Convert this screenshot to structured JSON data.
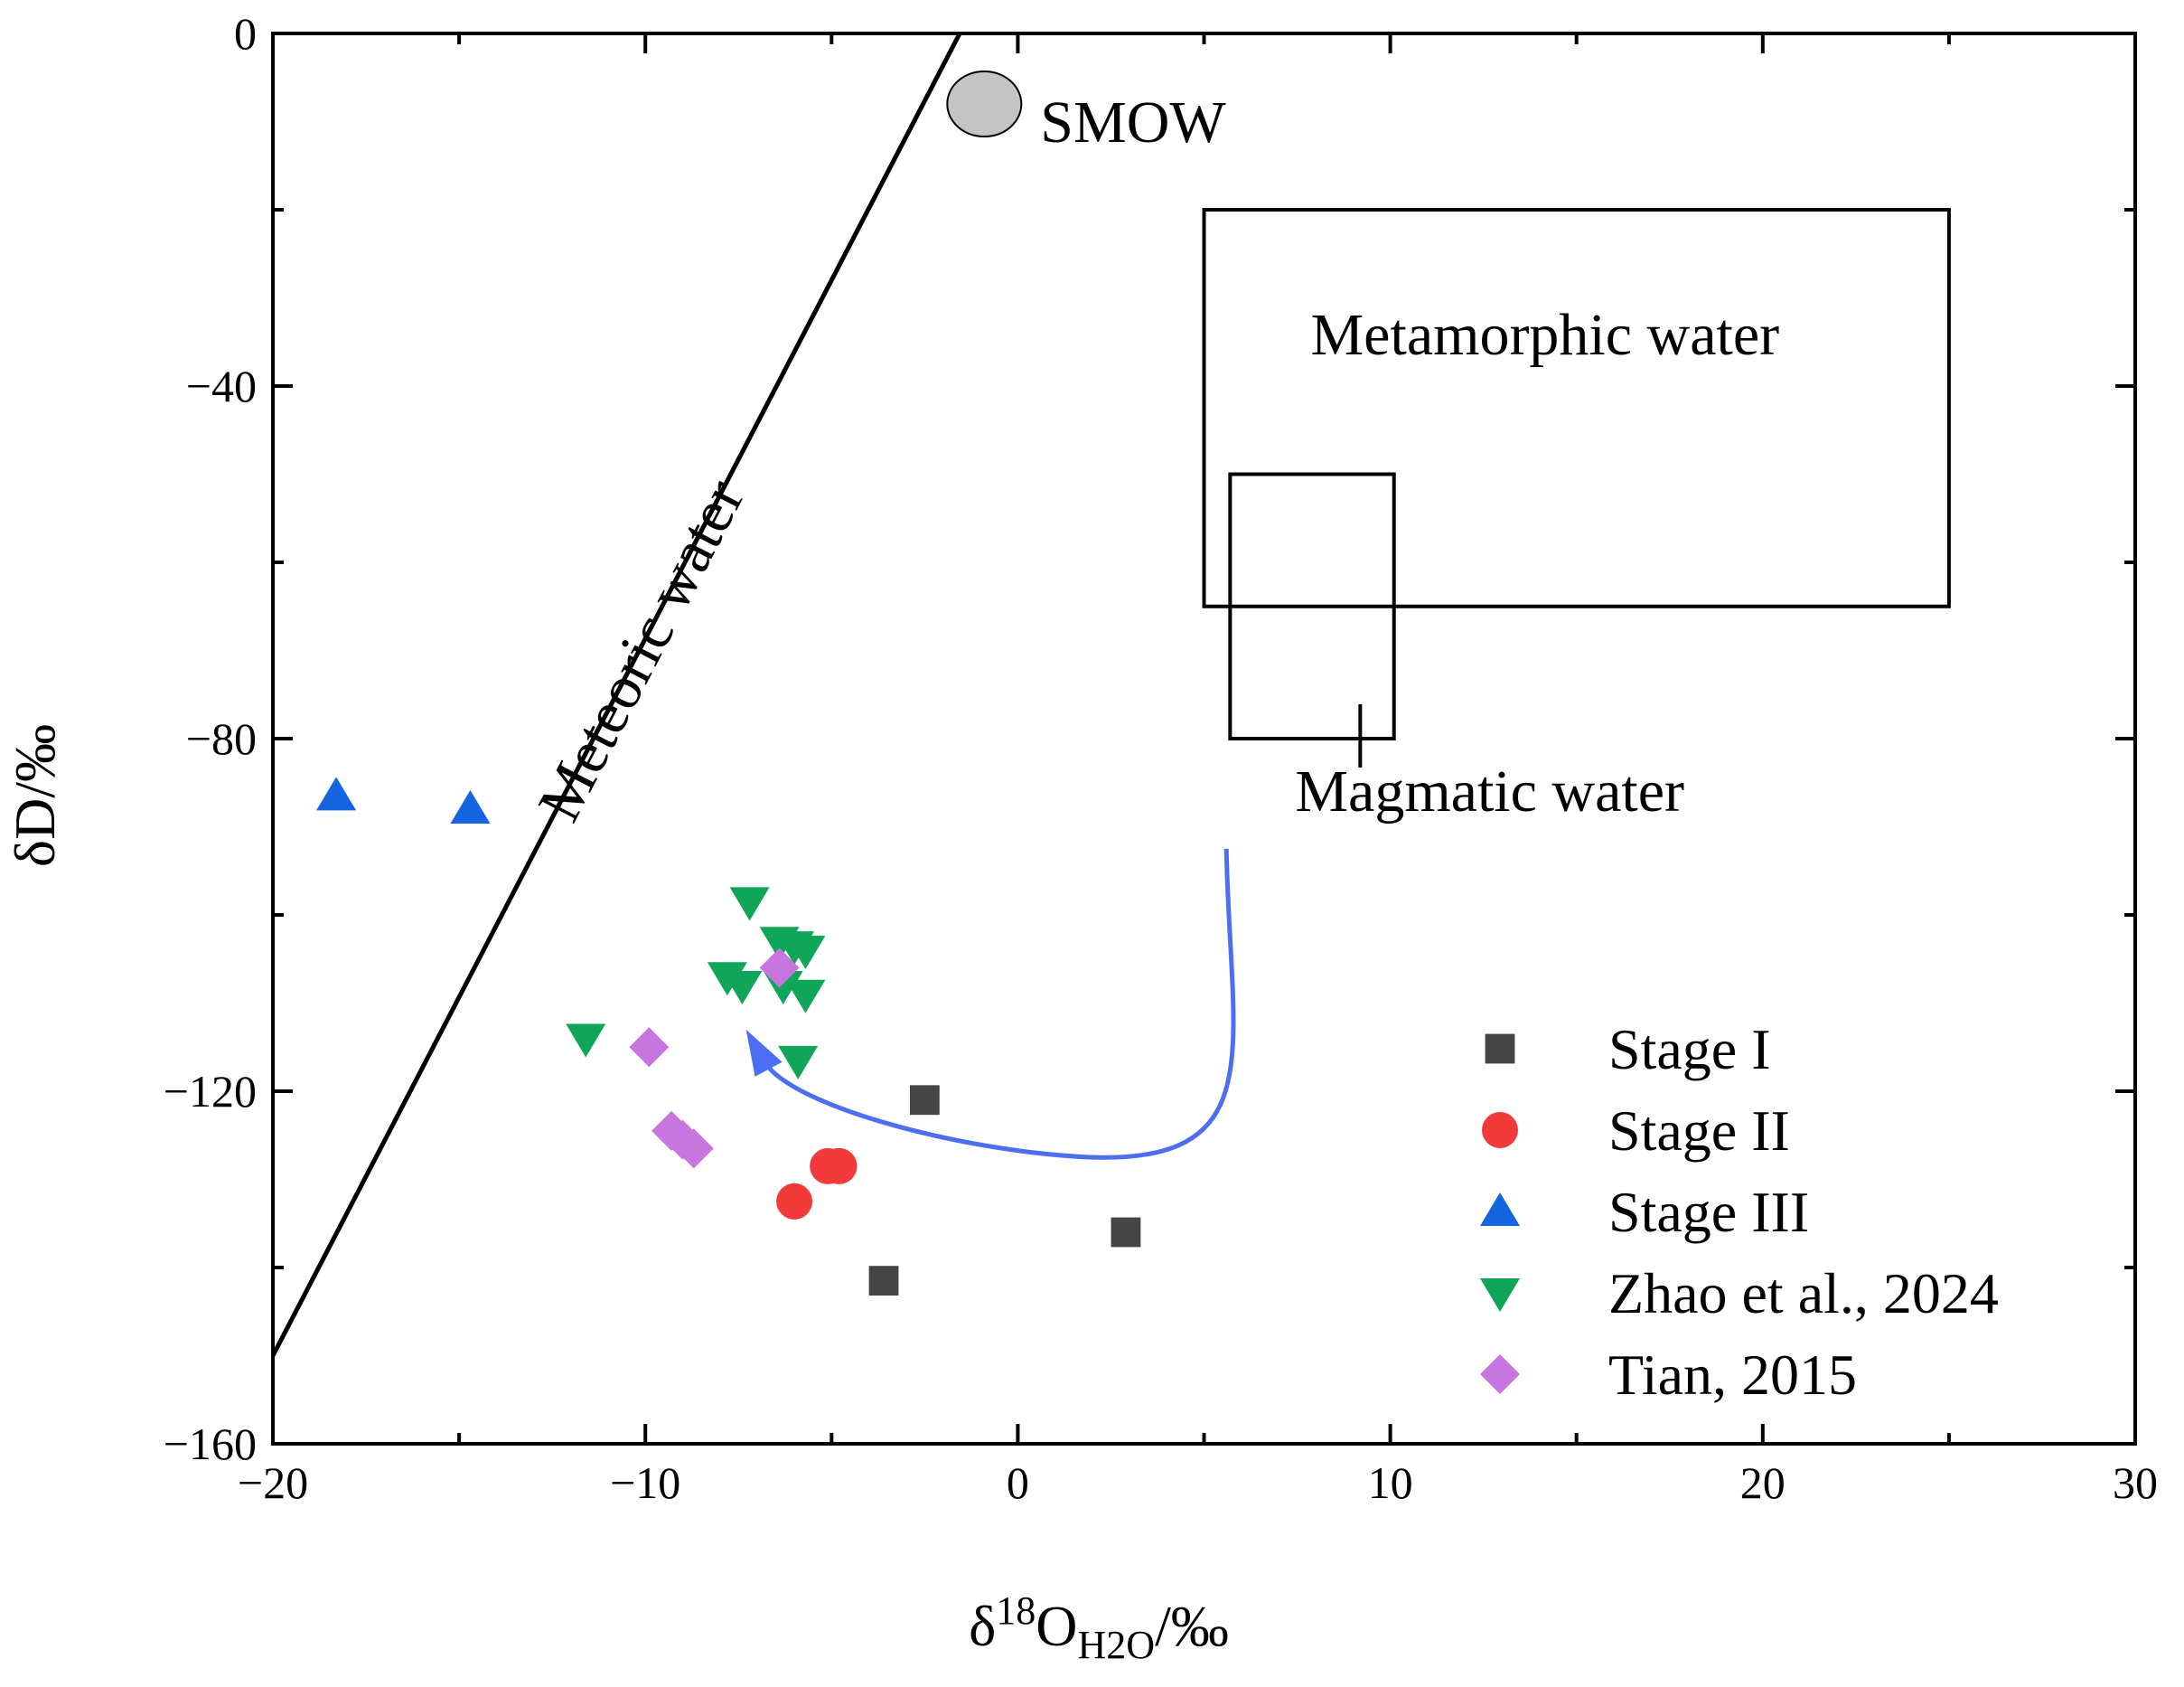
{
  "chart_data": {
    "type": "scatter",
    "title": "",
    "xlabel_parts": {
      "delta": "δ",
      "sup": "18",
      "main": "O",
      "sub": "H2O",
      "unit": "/‰"
    },
    "ylabel": "δD/‰",
    "xlim": [
      -20,
      30
    ],
    "ylim": [
      -160,
      0
    ],
    "x_ticks": [
      -20,
      -10,
      0,
      10,
      20,
      30
    ],
    "x_tick_labels": [
      "−20",
      "−10",
      "0",
      "10",
      "20",
      "30"
    ],
    "y_ticks": [
      0,
      -40,
      -80,
      -120,
      -160
    ],
    "y_tick_labels": [
      "0",
      "−40",
      "−80",
      "−120",
      "−160"
    ],
    "legend_position": "bottom-right",
    "series": [
      {
        "name": "Stage I",
        "marker": "square",
        "color": "#454545",
        "points": [
          [
            -2.5,
            -121
          ],
          [
            2.9,
            -136
          ],
          [
            -3.6,
            -141.5
          ]
        ]
      },
      {
        "name": "Stage II",
        "marker": "circle",
        "color": "#f23a3a",
        "points": [
          [
            -5.1,
            -128.5
          ],
          [
            -4.8,
            -128.5
          ],
          [
            -6.0,
            -132.5
          ]
        ]
      },
      {
        "name": "Stage III",
        "marker": "triangle-up",
        "color": "#1565e0",
        "points": [
          [
            -18.3,
            -86.5
          ],
          [
            -14.7,
            -88
          ]
        ]
      },
      {
        "name": "Zhao et al., 2024",
        "marker": "triangle-down",
        "color": "#0fa65a",
        "points": [
          [
            -7.2,
            -98.5
          ],
          [
            -6.4,
            -103
          ],
          [
            -6.0,
            -103.5
          ],
          [
            -5.7,
            -104
          ],
          [
            -7.8,
            -107
          ],
          [
            -7.4,
            -108
          ],
          [
            -6.3,
            -108
          ],
          [
            -5.7,
            -109
          ],
          [
            -5.9,
            -116.5
          ],
          [
            -11.6,
            -114
          ]
        ]
      },
      {
        "name": "Tian, 2015",
        "marker": "diamond",
        "color": "#c776e0",
        "points": [
          [
            -6.4,
            -106
          ],
          [
            -9.9,
            -115
          ],
          [
            -9.3,
            -124.5
          ],
          [
            -9.0,
            -125.5
          ],
          [
            -8.7,
            -126.5
          ]
        ]
      }
    ],
    "annotations": {
      "smow": {
        "label": "SMOW",
        "x": -0.9,
        "y": -8
      },
      "meteoric_water": {
        "label": "Meteoric water",
        "x1": -20,
        "y1": -150,
        "x2": -1.56,
        "y2": 0
      },
      "metamorphic_water": {
        "label": "Metamorphic water",
        "x": [
          5,
          25
        ],
        "y": [
          -65,
          -20
        ]
      },
      "magmatic_water": {
        "label": "Magmatic water",
        "x": [
          5.7,
          10.1
        ],
        "y": [
          -80,
          -50
        ]
      },
      "arrow": {
        "color": "#4b6ef2",
        "path": [
          [
            5.6,
            -92.5
          ],
          [
            2,
            -127.5
          ],
          [
            -7.2,
            -113
          ]
        ]
      }
    }
  }
}
